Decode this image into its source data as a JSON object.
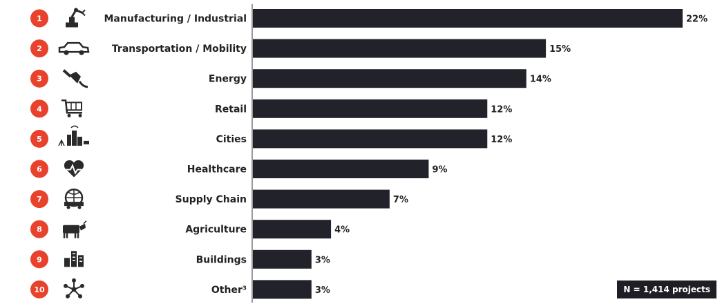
{
  "chart_data": {
    "type": "bar",
    "orientation": "horizontal",
    "categories": [
      "Manufacturing / Industrial",
      "Transportation / Mobility",
      "Energy",
      "Retail",
      "Cities",
      "Healthcare",
      "Supply Chain",
      "Agriculture",
      "Buildings",
      "Other³"
    ],
    "ranks": [
      "1",
      "2",
      "3",
      "4",
      "5",
      "6",
      "7",
      "8",
      "9",
      "10"
    ],
    "values": [
      22,
      15,
      14,
      12,
      12,
      9,
      7,
      4,
      3,
      3
    ],
    "value_labels": [
      "22%",
      "15%",
      "14%",
      "12%",
      "12%",
      "9%",
      "7%",
      "4%",
      "3%",
      "3%"
    ],
    "icons": [
      "robot-arm-icon",
      "car-icon",
      "power-plug-icon",
      "shopping-cart-icon",
      "city-icon",
      "heart-pulse-icon",
      "globe-truck-icon",
      "cow-icon",
      "buildings-icon",
      "network-nodes-icon"
    ],
    "xlim": [
      0,
      22
    ],
    "grid": false,
    "colors": {
      "bar": "#22222a",
      "rank_badge": "#e8412c",
      "icon": "#2a2a2a"
    }
  },
  "note": "N = 1,414 projects"
}
